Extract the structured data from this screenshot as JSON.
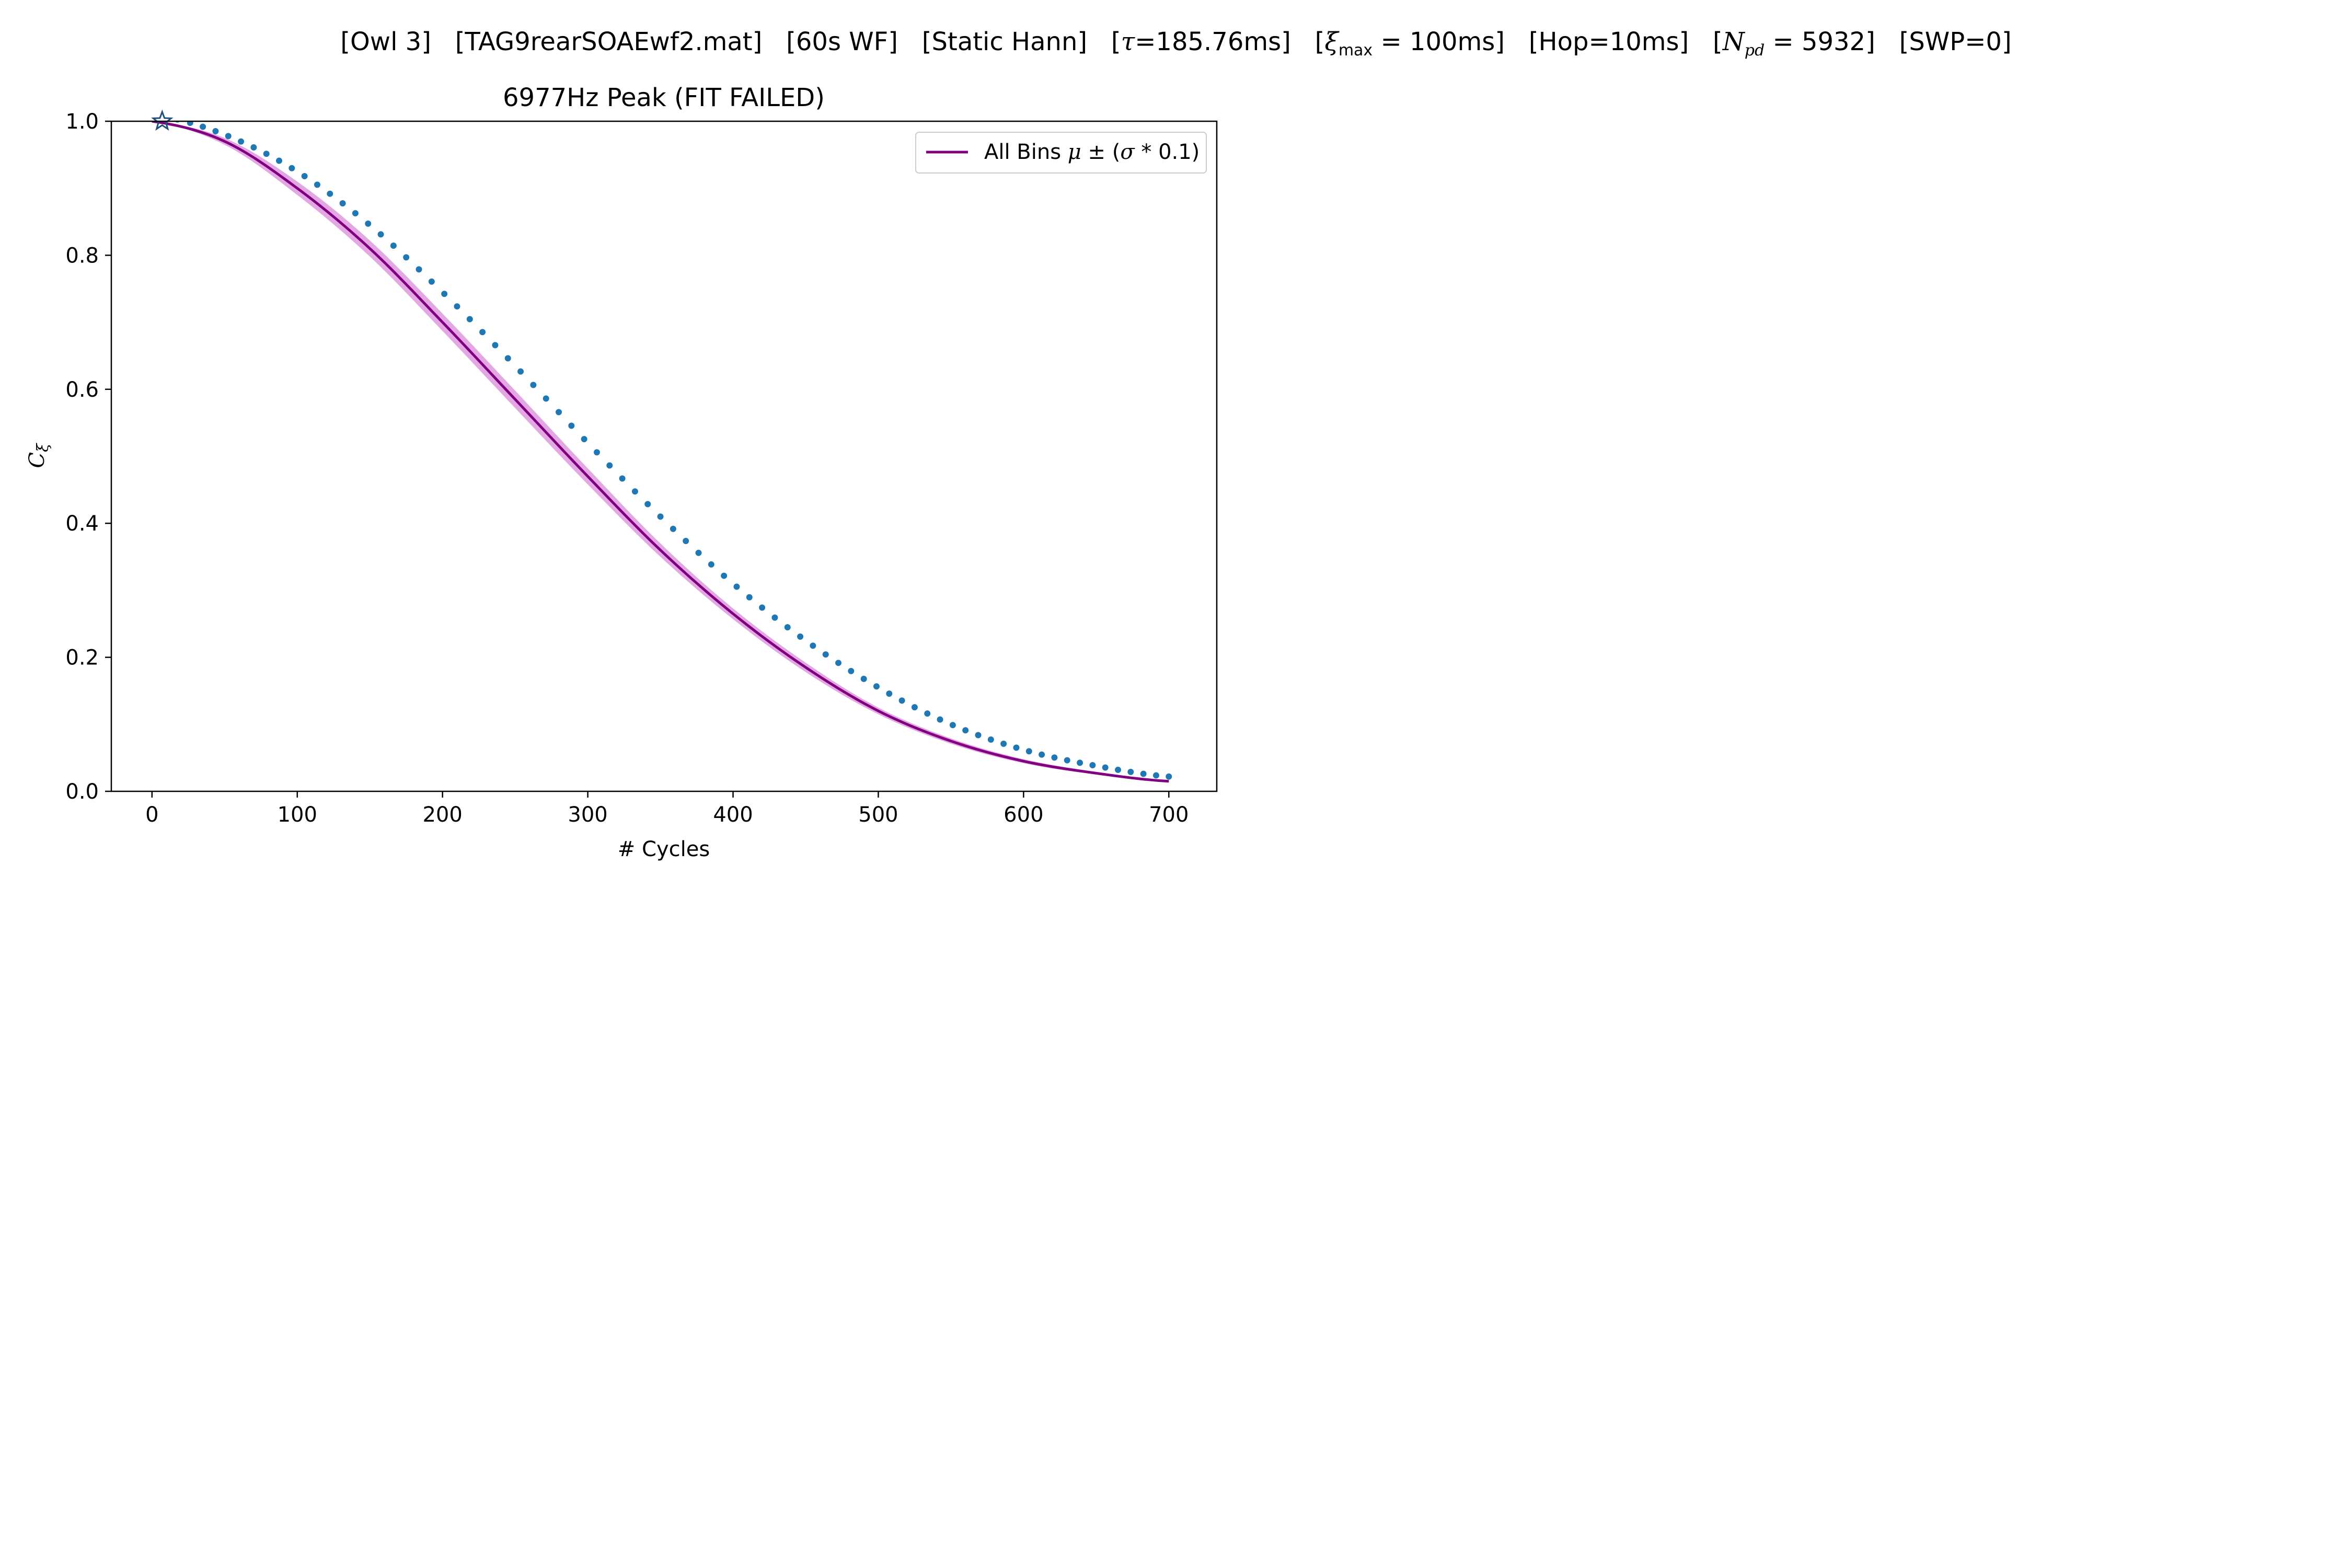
{
  "figure": {
    "suptitle": {
      "owl": "[Owl 3]",
      "file": "[TAG9rearSOAEwf2.mat]",
      "wf": "[60s WF]",
      "window": "[Static Hann]",
      "tau_prefix": "[",
      "tau_symbol": "τ",
      "tau_value": "=185.76ms]",
      "xi_prefix": "[",
      "xi_symbol": "ξ",
      "xi_sub": "max",
      "xi_value": " = 100ms]",
      "hop": "[Hop=10ms]",
      "npd_prefix": "[",
      "npd_symbol": "N",
      "npd_sub": "pd",
      "npd_value": " = 5932]",
      "swp": "[SWP=0]"
    }
  },
  "chart_data": {
    "type": "line",
    "title": "6977Hz Peak (FIT FAILED)",
    "xlabel": "# Cycles",
    "ylabel_symbol": "C",
    "ylabel_sub": "ξ",
    "xlim": [
      -28,
      733
    ],
    "ylim": [
      0,
      1
    ],
    "xticks": [
      "0",
      "100",
      "200",
      "300",
      "400",
      "500",
      "600",
      "700"
    ],
    "yticks": [
      "0.0",
      "0.2",
      "0.4",
      "0.6",
      "0.8",
      "1.0"
    ],
    "grid": false,
    "legend": {
      "placement": "top-right",
      "label_prefix": "All Bins ",
      "label_mu": "μ",
      "label_pm": " ± (",
      "label_sigma": "σ",
      "label_suffix": " * 0.1)"
    },
    "series": [
      {
        "name": "All Bins μ ± (σ * 0.1)",
        "style": "line-with-band",
        "color": "#800080",
        "band_color": "#d98ad9",
        "x": [
          0,
          50,
          100,
          150,
          200,
          250,
          300,
          350,
          400,
          450,
          500,
          550,
          600,
          650,
          700
        ],
        "values": [
          1.0,
          0.97,
          0.9,
          0.81,
          0.7,
          0.585,
          0.47,
          0.36,
          0.265,
          0.185,
          0.12,
          0.075,
          0.045,
          0.027,
          0.015
        ],
        "band_halfwidth": [
          0.0,
          0.005,
          0.01,
          0.012,
          0.013,
          0.013,
          0.012,
          0.01,
          0.008,
          0.007,
          0.005,
          0.004,
          0.003,
          0.002,
          0.001
        ]
      },
      {
        "style": "dots",
        "color": "#1f77b4",
        "x": [
          0,
          50,
          100,
          150,
          200,
          250,
          300,
          350,
          400,
          450,
          500,
          550,
          600,
          650,
          700
        ],
        "values": [
          1.01,
          0.98,
          0.925,
          0.845,
          0.745,
          0.635,
          0.52,
          0.41,
          0.31,
          0.225,
          0.155,
          0.1,
          0.062,
          0.038,
          0.022
        ]
      }
    ],
    "marker": {
      "shape": "star",
      "x": 7,
      "y": 1.0,
      "color": "#1f4f7a"
    }
  }
}
